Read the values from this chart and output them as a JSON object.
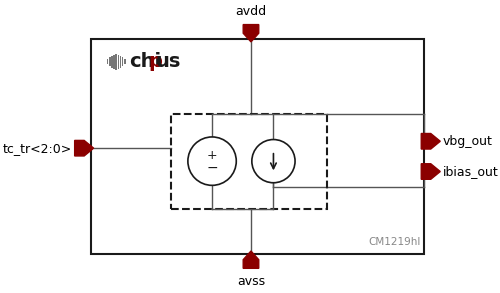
{
  "bg_color": "#ffffff",
  "border_color": "#1a1a1a",
  "dark_red": "#8B0000",
  "gray": "#888888",
  "line_color": "#555555",
  "avdd_label": "avdd",
  "avss_label": "avss",
  "vbg_label": "vbg_out",
  "ibias_label": "ibias_out",
  "tc_label": "tc_tr<2:0>",
  "cm_label": "CM1219hl",
  "label_fontsize": 9,
  "small_fontsize": 7.5,
  "fig_w": 5.0,
  "fig_h": 2.93
}
